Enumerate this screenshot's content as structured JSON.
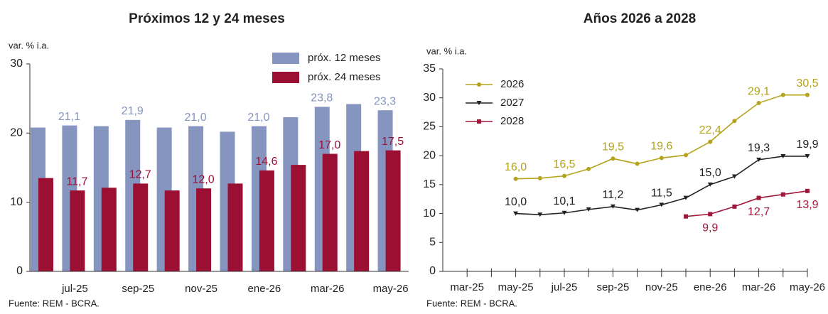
{
  "chart_data": [
    {
      "type": "bar",
      "title": "Próximos 12 y 24 meses",
      "y_label": "var. % i.a.",
      "source": "Fuente: REM - BCRA.",
      "categories": [
        null,
        "jul-25",
        null,
        "sep-25",
        null,
        "nov-25",
        null,
        "ene-26",
        null,
        "mar-26",
        null,
        "may-26"
      ],
      "series": [
        {
          "name": "próx. 12 meses",
          "color": "#8595c0",
          "values": [
            20.8,
            21.1,
            21.0,
            21.9,
            20.8,
            21.0,
            20.2,
            21.0,
            22.3,
            23.8,
            24.2,
            23.3
          ],
          "value_labels": [
            null,
            "21,1",
            null,
            "21,9",
            null,
            "21,0",
            null,
            "21,0",
            null,
            "23,8",
            null,
            "23,3"
          ]
        },
        {
          "name": "próx. 24 meses",
          "color": "#9b0f33",
          "values": [
            13.5,
            11.7,
            12.1,
            12.7,
            11.7,
            12.0,
            12.7,
            14.6,
            15.4,
            17.0,
            17.4,
            17.5
          ],
          "value_labels": [
            null,
            "11,7",
            null,
            "12,7",
            null,
            "12,0",
            null,
            "14,6",
            null,
            "17,0",
            null,
            "17,5"
          ]
        }
      ],
      "ylim": [
        0,
        30
      ],
      "yticks": [
        0,
        10,
        20,
        30
      ],
      "legend": "top-right"
    },
    {
      "type": "line",
      "title": "Años 2026 a 2028",
      "y_label": "var. % i.a.",
      "source": "Fuente: REM - BCRA.",
      "categories": [
        null,
        "mar-25",
        null,
        "may-25",
        null,
        "jul-25",
        null,
        "sep-25",
        null,
        "nov-25",
        null,
        "ene-26",
        null,
        "mar-26",
        null,
        "may-26"
      ],
      "series": [
        {
          "name": "2026",
          "color": "#b3a21a",
          "marker": "circle",
          "values": [
            null,
            null,
            null,
            16.0,
            16.1,
            16.5,
            17.7,
            19.5,
            18.6,
            19.6,
            20.1,
            22.4,
            26.0,
            29.1,
            30.5,
            30.5
          ],
          "value_labels": [
            null,
            null,
            null,
            "16,0",
            null,
            "16,5",
            null,
            "19,5",
            null,
            "19,6",
            null,
            "22,4",
            null,
            "29,1",
            null,
            "30,5"
          ]
        },
        {
          "name": "2027",
          "color": "#222222",
          "marker": "triangle",
          "values": [
            null,
            null,
            null,
            10.0,
            9.8,
            10.1,
            10.7,
            11.2,
            10.6,
            11.5,
            12.7,
            15.0,
            16.4,
            19.3,
            19.9,
            19.9
          ],
          "value_labels": [
            null,
            null,
            null,
            "10,0",
            null,
            "10,1",
            null,
            "11,2",
            null,
            "11,5",
            null,
            "15,0",
            null,
            "19,3",
            null,
            "19,9"
          ]
        },
        {
          "name": "2028",
          "color": "#a0183a",
          "marker": "square",
          "values": [
            null,
            null,
            null,
            null,
            null,
            null,
            null,
            null,
            null,
            null,
            9.5,
            9.9,
            11.2,
            12.7,
            13.3,
            13.9
          ],
          "value_labels": [
            null,
            null,
            null,
            null,
            null,
            null,
            null,
            null,
            null,
            null,
            null,
            "9,9",
            null,
            "12,7",
            null,
            "13,9"
          ]
        }
      ],
      "ylim": [
        0,
        35
      ],
      "yticks": [
        0,
        5,
        10,
        15,
        20,
        25,
        30,
        35
      ],
      "legend": "top-left"
    }
  ]
}
